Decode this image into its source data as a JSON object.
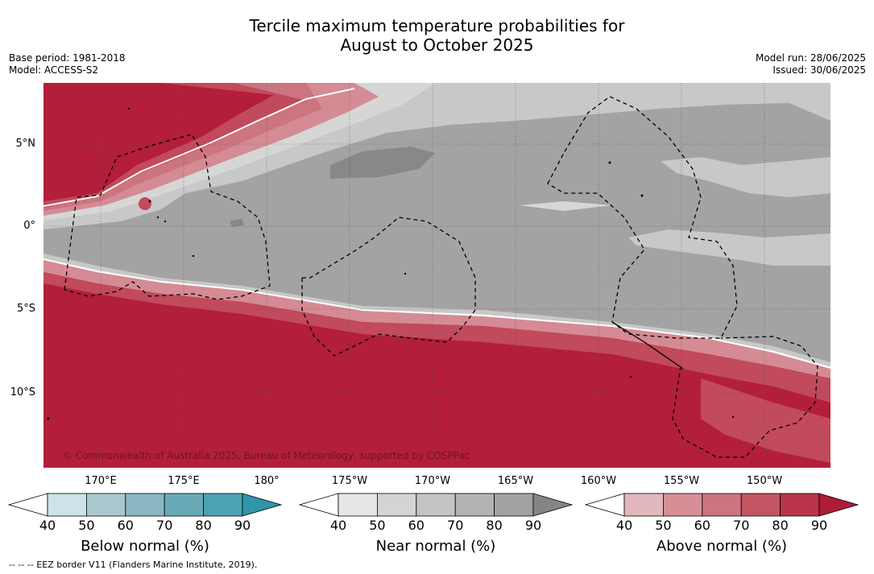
{
  "title_line1": "Tercile maximum temperature probabilities for",
  "title_line2": "August to October 2025",
  "base_period": "Base period: 1981-2018",
  "model": "Model: ACCESS-S2",
  "model_run": "Model run: 28/06/2025",
  "issued": "Issued: 30/06/2025",
  "lat_labels": [
    "5°N",
    "0°",
    "5°S",
    "10°S"
  ],
  "lon_labels": [
    "170°E",
    "175°E",
    "180°",
    "175°W",
    "170°W",
    "165°W",
    "160°W",
    "155°W",
    "150°W"
  ],
  "copyright": "© Commonwealth of Australia 2025, Bureau of Meteorology, supported by COSPPac",
  "footer": "--  --  -- EEZ border V11 (Flanders Marine Institute, 2019).",
  "colorbars": [
    {
      "label": "Below normal (%)",
      "ticks": [
        "40",
        "50",
        "60",
        "70",
        "80",
        "90"
      ],
      "colors": [
        "#ffffff",
        "#cce3e8",
        "#a9c9cf",
        "#8ab7c1",
        "#6aaab7",
        "#4aa2b2",
        "#2e96a9"
      ]
    },
    {
      "label": "Near normal (%)",
      "ticks": [
        "40",
        "50",
        "60",
        "70",
        "80",
        "90"
      ],
      "colors": [
        "#ffffff",
        "#e6e6e6",
        "#d4d4d4",
        "#c4c4c4",
        "#b3b3b3",
        "#a3a3a3",
        "#858585"
      ]
    },
    {
      "label": "Above normal (%)",
      "ticks": [
        "40",
        "50",
        "60",
        "70",
        "80",
        "90"
      ],
      "colors": [
        "#ffffff",
        "#e2b8bd",
        "#d68f97",
        "#cc7480",
        "#c35563",
        "#b83449",
        "#b01c38"
      ]
    }
  ],
  "colors": {
    "above_strong": "#b31e3a",
    "above_mid": "#c14a5c",
    "above_light": "#d48b94",
    "near_light": "#d6d6d6",
    "near_mid": "#c8c8c8",
    "near_main": "#a3a3a3",
    "near_dark": "#888888",
    "below_light": "#a9cdd4",
    "below_mid": "#5fa9b8"
  }
}
